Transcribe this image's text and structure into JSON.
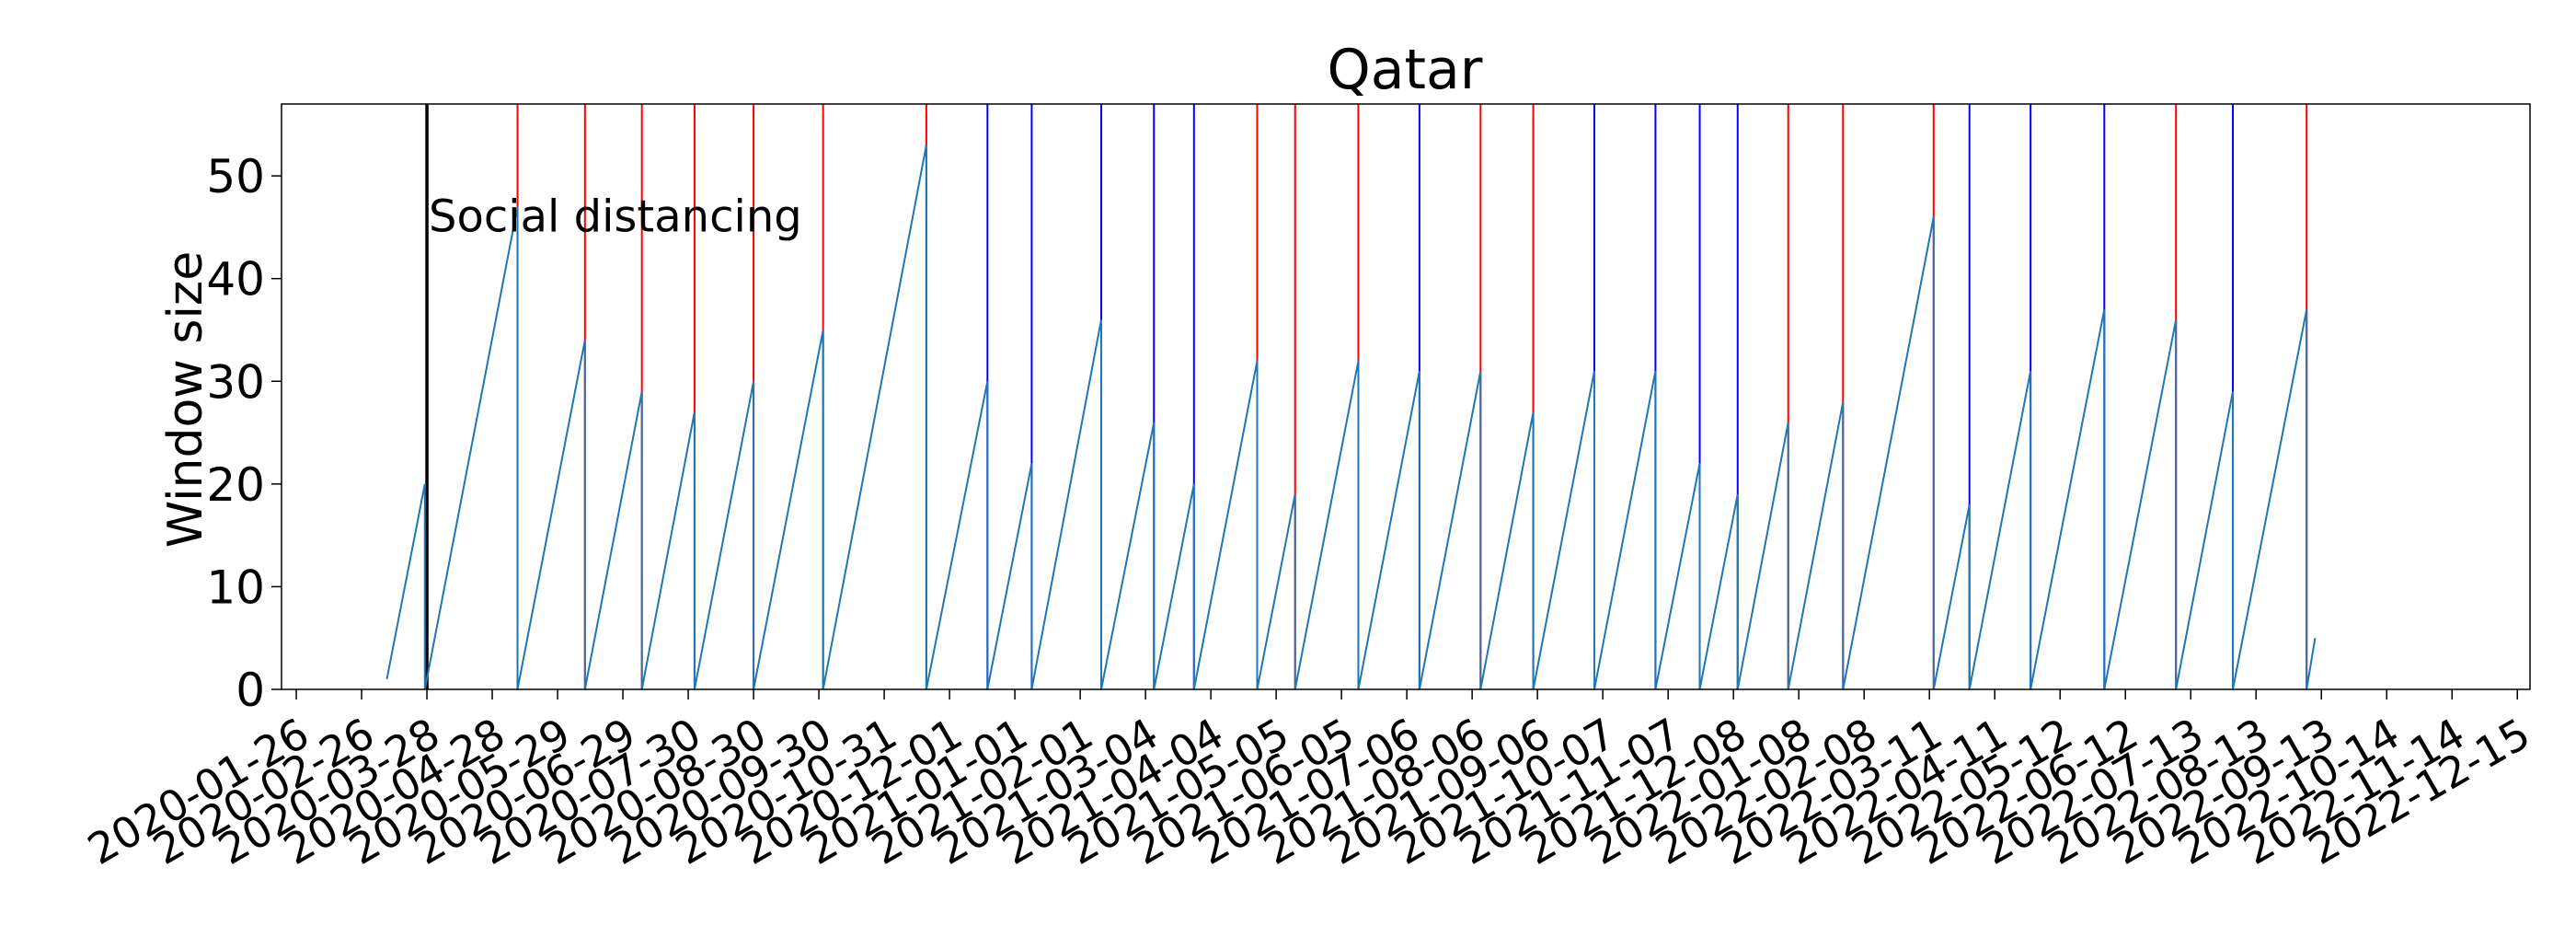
{
  "chart_data": {
    "type": "line",
    "title": "Qatar",
    "xlabel": "",
    "ylabel": "Window size",
    "xlim": [
      "2020-01-19",
      "2022-12-21"
    ],
    "ylim": [
      0,
      57
    ],
    "yticks": [
      0,
      10,
      20,
      30,
      40,
      50
    ],
    "xticks": [
      "2020-01-26",
      "2020-02-26",
      "2020-03-28",
      "2020-04-28",
      "2020-05-29",
      "2020-06-29",
      "2020-07-30",
      "2020-08-30",
      "2020-09-30",
      "2020-10-31",
      "2020-12-01",
      "2021-01-01",
      "2021-02-01",
      "2021-03-04",
      "2021-04-04",
      "2021-05-05",
      "2021-06-05",
      "2021-07-06",
      "2021-08-06",
      "2021-09-06",
      "2021-10-07",
      "2021-11-07",
      "2021-12-08",
      "2022-01-08",
      "2022-02-08",
      "2022-03-11",
      "2022-04-11",
      "2022-05-12",
      "2022-06-12",
      "2022-07-13",
      "2022-08-13",
      "2022-09-13",
      "2022-10-14",
      "2022-11-14",
      "2022-12-15"
    ],
    "grid": false,
    "series": [
      {
        "values": [
          {
            "x": "2020-03-09",
            "y": 1
          },
          {
            "x": "2020-03-27",
            "y": 20
          },
          {
            "x": "2020-03-27",
            "y": 0
          },
          {
            "x": "2020-05-10",
            "y": 47
          },
          {
            "x": "2020-05-10",
            "y": 0
          },
          {
            "x": "2020-06-11",
            "y": 34
          },
          {
            "x": "2020-06-11",
            "y": 0
          },
          {
            "x": "2020-07-08",
            "y": 29
          },
          {
            "x": "2020-07-08",
            "y": 0
          },
          {
            "x": "2020-08-02",
            "y": 27
          },
          {
            "x": "2020-08-02",
            "y": 0
          },
          {
            "x": "2020-08-30",
            "y": 30
          },
          {
            "x": "2020-08-30",
            "y": 0
          },
          {
            "x": "2020-10-02",
            "y": 35
          },
          {
            "x": "2020-10-02",
            "y": 0
          },
          {
            "x": "2020-11-20",
            "y": 53
          },
          {
            "x": "2020-11-20",
            "y": 0
          },
          {
            "x": "2020-12-19",
            "y": 30
          },
          {
            "x": "2020-12-19",
            "y": 0
          },
          {
            "x": "2021-01-09",
            "y": 22
          },
          {
            "x": "2021-01-09",
            "y": 0
          },
          {
            "x": "2021-02-11",
            "y": 36
          },
          {
            "x": "2021-02-11",
            "y": 0
          },
          {
            "x": "2021-03-08",
            "y": 26
          },
          {
            "x": "2021-03-08",
            "y": 0
          },
          {
            "x": "2021-03-27",
            "y": 20
          },
          {
            "x": "2021-03-27",
            "y": 0
          },
          {
            "x": "2021-04-26",
            "y": 32
          },
          {
            "x": "2021-04-26",
            "y": 0
          },
          {
            "x": "2021-05-14",
            "y": 19
          },
          {
            "x": "2021-05-14",
            "y": 0
          },
          {
            "x": "2021-06-13",
            "y": 32
          },
          {
            "x": "2021-06-13",
            "y": 0
          },
          {
            "x": "2021-07-12",
            "y": 31
          },
          {
            "x": "2021-07-12",
            "y": 0
          },
          {
            "x": "2021-08-10",
            "y": 31
          },
          {
            "x": "2021-08-10",
            "y": 0
          },
          {
            "x": "2021-09-04",
            "y": 27
          },
          {
            "x": "2021-09-04",
            "y": 0
          },
          {
            "x": "2021-10-03",
            "y": 31
          },
          {
            "x": "2021-10-03",
            "y": 0
          },
          {
            "x": "2021-11-01",
            "y": 31
          },
          {
            "x": "2021-11-01",
            "y": 0
          },
          {
            "x": "2021-11-22",
            "y": 22
          },
          {
            "x": "2021-11-22",
            "y": 0
          },
          {
            "x": "2021-12-10",
            "y": 19
          },
          {
            "x": "2021-12-10",
            "y": 0
          },
          {
            "x": "2022-01-03",
            "y": 26
          },
          {
            "x": "2022-01-03",
            "y": 0
          },
          {
            "x": "2022-01-29",
            "y": 28
          },
          {
            "x": "2022-01-29",
            "y": 0
          },
          {
            "x": "2022-03-13",
            "y": 46
          },
          {
            "x": "2022-03-13",
            "y": 0
          },
          {
            "x": "2022-03-30",
            "y": 18
          },
          {
            "x": "2022-03-30",
            "y": 0
          },
          {
            "x": "2022-04-28",
            "y": 31
          },
          {
            "x": "2022-04-28",
            "y": 0
          },
          {
            "x": "2022-06-02",
            "y": 37
          },
          {
            "x": "2022-06-02",
            "y": 0
          },
          {
            "x": "2022-07-06",
            "y": 36
          },
          {
            "x": "2022-07-06",
            "y": 0
          },
          {
            "x": "2022-08-02",
            "y": 29
          },
          {
            "x": "2022-08-02",
            "y": 0
          },
          {
            "x": "2022-09-06",
            "y": 37
          },
          {
            "x": "2022-09-06",
            "y": 0
          },
          {
            "x": "2022-09-10",
            "y": 5
          }
        ]
      }
    ],
    "events": [
      {
        "x": "2020-03-28",
        "color": "#000000"
      },
      {
        "x": "2020-05-10",
        "color": "#ff0000"
      },
      {
        "x": "2020-06-11",
        "color": "#ff0000"
      },
      {
        "x": "2020-07-08",
        "color": "#ff0000"
      },
      {
        "x": "2020-08-02",
        "color": "#ff0000"
      },
      {
        "x": "2020-08-30",
        "color": "#ff0000"
      },
      {
        "x": "2020-10-02",
        "color": "#ff0000"
      },
      {
        "x": "2020-11-20",
        "color": "#ff0000"
      },
      {
        "x": "2020-12-19",
        "color": "#0000ff"
      },
      {
        "x": "2021-01-09",
        "color": "#0000ff"
      },
      {
        "x": "2021-02-11",
        "color": "#0000ff"
      },
      {
        "x": "2021-03-08",
        "color": "#0000ff"
      },
      {
        "x": "2021-03-27",
        "color": "#0000ff"
      },
      {
        "x": "2021-04-26",
        "color": "#ff0000"
      },
      {
        "x": "2021-05-14",
        "color": "#ff0000"
      },
      {
        "x": "2021-06-13",
        "color": "#ff0000"
      },
      {
        "x": "2021-07-12",
        "color": "#0000ff"
      },
      {
        "x": "2021-08-10",
        "color": "#ff0000"
      },
      {
        "x": "2021-09-04",
        "color": "#ff0000"
      },
      {
        "x": "2021-10-03",
        "color": "#0000ff"
      },
      {
        "x": "2021-11-01",
        "color": "#0000ff"
      },
      {
        "x": "2021-11-22",
        "color": "#0000ff"
      },
      {
        "x": "2021-12-10",
        "color": "#0000ff"
      },
      {
        "x": "2022-01-03",
        "color": "#ff0000"
      },
      {
        "x": "2022-01-29",
        "color": "#ff0000"
      },
      {
        "x": "2022-03-13",
        "color": "#ff0000"
      },
      {
        "x": "2022-03-30",
        "color": "#0000ff"
      },
      {
        "x": "2022-04-28",
        "color": "#0000ff"
      },
      {
        "x": "2022-06-02",
        "color": "#0000ff"
      },
      {
        "x": "2022-07-06",
        "color": "#ff0000"
      },
      {
        "x": "2022-08-02",
        "color": "#0000ff"
      },
      {
        "x": "2022-09-06",
        "color": "#ff0000"
      }
    ],
    "annotations": [
      {
        "text": "Social distancing",
        "x": "2020-03-28",
        "y": 46
      }
    ],
    "colors": {
      "series_line": "#1f77b4",
      "lockdown_event": "#ff0000",
      "relaxation_event": "#0000ff",
      "social_distancing_event": "#000000"
    }
  }
}
